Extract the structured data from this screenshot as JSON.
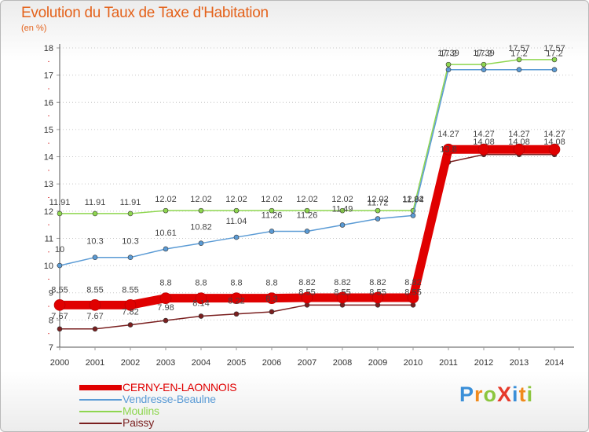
{
  "header": {
    "title": "Evolution du Taux de Taxe d'Habitation",
    "unit": "(en %)"
  },
  "chart_data": {
    "type": "line",
    "title": "Evolution du Taux de Taxe d'Habitation",
    "ylabel": "(en %)",
    "xlabel": "",
    "x": [
      "2000",
      "2001",
      "2002",
      "2003",
      "2004",
      "2005",
      "2006",
      "2007",
      "2008",
      "2009",
      "2010",
      "2011",
      "2012",
      "2013",
      "2014"
    ],
    "ylim": [
      7,
      18
    ],
    "yticks": [
      7,
      8,
      9,
      10,
      11,
      12,
      13,
      14,
      15,
      16,
      17,
      18
    ],
    "grid": "horizontal dotted",
    "series": [
      {
        "name": "CERNY-EN-LAONNOIS",
        "color": "#e00000",
        "values": [
          8.55,
          8.55,
          8.55,
          8.8,
          8.8,
          8.8,
          8.8,
          8.82,
          8.82,
          8.82,
          8.82,
          14.27,
          14.27,
          14.27,
          14.27
        ],
        "labels": [
          "8.55",
          "8.55",
          "8.55",
          "8.8",
          "8.8",
          "8.8",
          "8.8",
          "8.82",
          "8.82",
          "8.82",
          "8.82",
          "14.27",
          "14.27",
          "14.27",
          "14.27"
        ]
      },
      {
        "name": "Vendresse-Beaulne",
        "color": "#5b9bd5",
        "values": [
          10,
          10.3,
          10.3,
          10.61,
          10.82,
          11.04,
          11.26,
          11.26,
          11.49,
          11.72,
          11.84,
          17.2,
          17.2,
          17.2,
          17.2
        ],
        "labels": [
          "10",
          "10.3",
          "10.3",
          "10.61",
          "10.82",
          "11.04",
          "11.26",
          "11.26",
          "11.49",
          "11.72",
          "11.84",
          "17.2",
          "17.2",
          "17.2",
          "17.2"
        ]
      },
      {
        "name": "Moulins",
        "color": "#8ed64f",
        "values": [
          11.91,
          11.91,
          11.91,
          12.02,
          12.02,
          12.02,
          12.02,
          12.02,
          12.02,
          12.02,
          12.02,
          17.39,
          17.39,
          17.57,
          17.57
        ],
        "labels": [
          "11.91",
          "11.91",
          "11.91",
          "12.02",
          "12.02",
          "12.02",
          "12.02",
          "12.02",
          "12.02",
          "12.02",
          "12.02",
          "17.39",
          "17.39",
          "17.57",
          "17.57"
        ]
      },
      {
        "name": "Paissy",
        "color": "#7a1f1f",
        "values": [
          7.67,
          7.67,
          7.82,
          7.98,
          8.14,
          8.22,
          8.3,
          8.55,
          8.55,
          8.55,
          8.55,
          13.8,
          14.08,
          14.08,
          14.08
        ],
        "labels": [
          "7.67",
          "7.67",
          "7.82",
          "7.98",
          "8.14",
          "8.22",
          "8.3",
          "8.55",
          "8.55",
          "8.55",
          "8.55",
          "13.8",
          "14.08",
          "14.08",
          "14.08"
        ]
      }
    ]
  },
  "legend": {
    "items": [
      {
        "label": "CERNY-EN-LAONNOIS",
        "color": "#e00000"
      },
      {
        "label": "Vendresse-Beaulne",
        "color": "#5b9bd5"
      },
      {
        "label": "Moulins",
        "color": "#8ed64f"
      },
      {
        "label": "Paissy",
        "color": "#7a1f1f"
      }
    ]
  },
  "brand": {
    "letters": [
      {
        "char": "P",
        "color": "#3a8fd8"
      },
      {
        "char": "r",
        "color": "#f08a1c"
      },
      {
        "char": "o",
        "color": "#8cc63f"
      },
      {
        "char": "X",
        "color": "#e63a2b"
      },
      {
        "char": "i",
        "color": "#3a8fd8"
      },
      {
        "char": "t",
        "color": "#f08a1c"
      },
      {
        "char": "i",
        "color": "#8cc63f"
      }
    ]
  }
}
